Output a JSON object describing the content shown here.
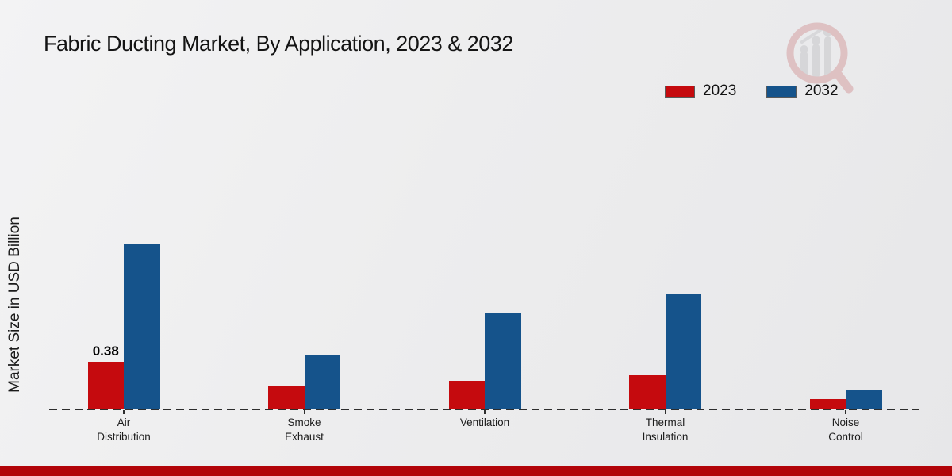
{
  "title": "Fabric Ducting Market, By Application, 2023 & 2032",
  "y_axis_label": "Market Size in USD Billion",
  "legend": {
    "items": [
      {
        "label": "2023",
        "color": "#c50a0e"
      },
      {
        "label": "2032",
        "color": "#15538b"
      }
    ]
  },
  "footer": {
    "accent_bar_color": "#b20409"
  },
  "watermark_icon": "magnifier-bar-chart-logo",
  "chart_data": {
    "type": "bar",
    "title": "Fabric Ducting Market, By Application, 2023 & 2032",
    "ylabel": "Market Size in USD Billion",
    "xlabel": "",
    "categories": [
      "Air Distribution",
      "Smoke Exhaust",
      "Ventilation",
      "Thermal Insulation",
      "Noise Control"
    ],
    "series": [
      {
        "name": "2023",
        "color": "#c50a0e",
        "values": [
          0.38,
          0.19,
          0.23,
          0.27,
          0.08
        ]
      },
      {
        "name": "2032",
        "color": "#15538b",
        "values": [
          1.32,
          0.43,
          0.77,
          0.92,
          0.15
        ]
      }
    ],
    "data_labels": [
      {
        "series": "2023",
        "category": "Air Distribution",
        "text": "0.38"
      }
    ],
    "ylim": [
      0,
      1.4
    ],
    "grid": false,
    "baseline_style": "dashed",
    "legend_position": "top-right"
  }
}
